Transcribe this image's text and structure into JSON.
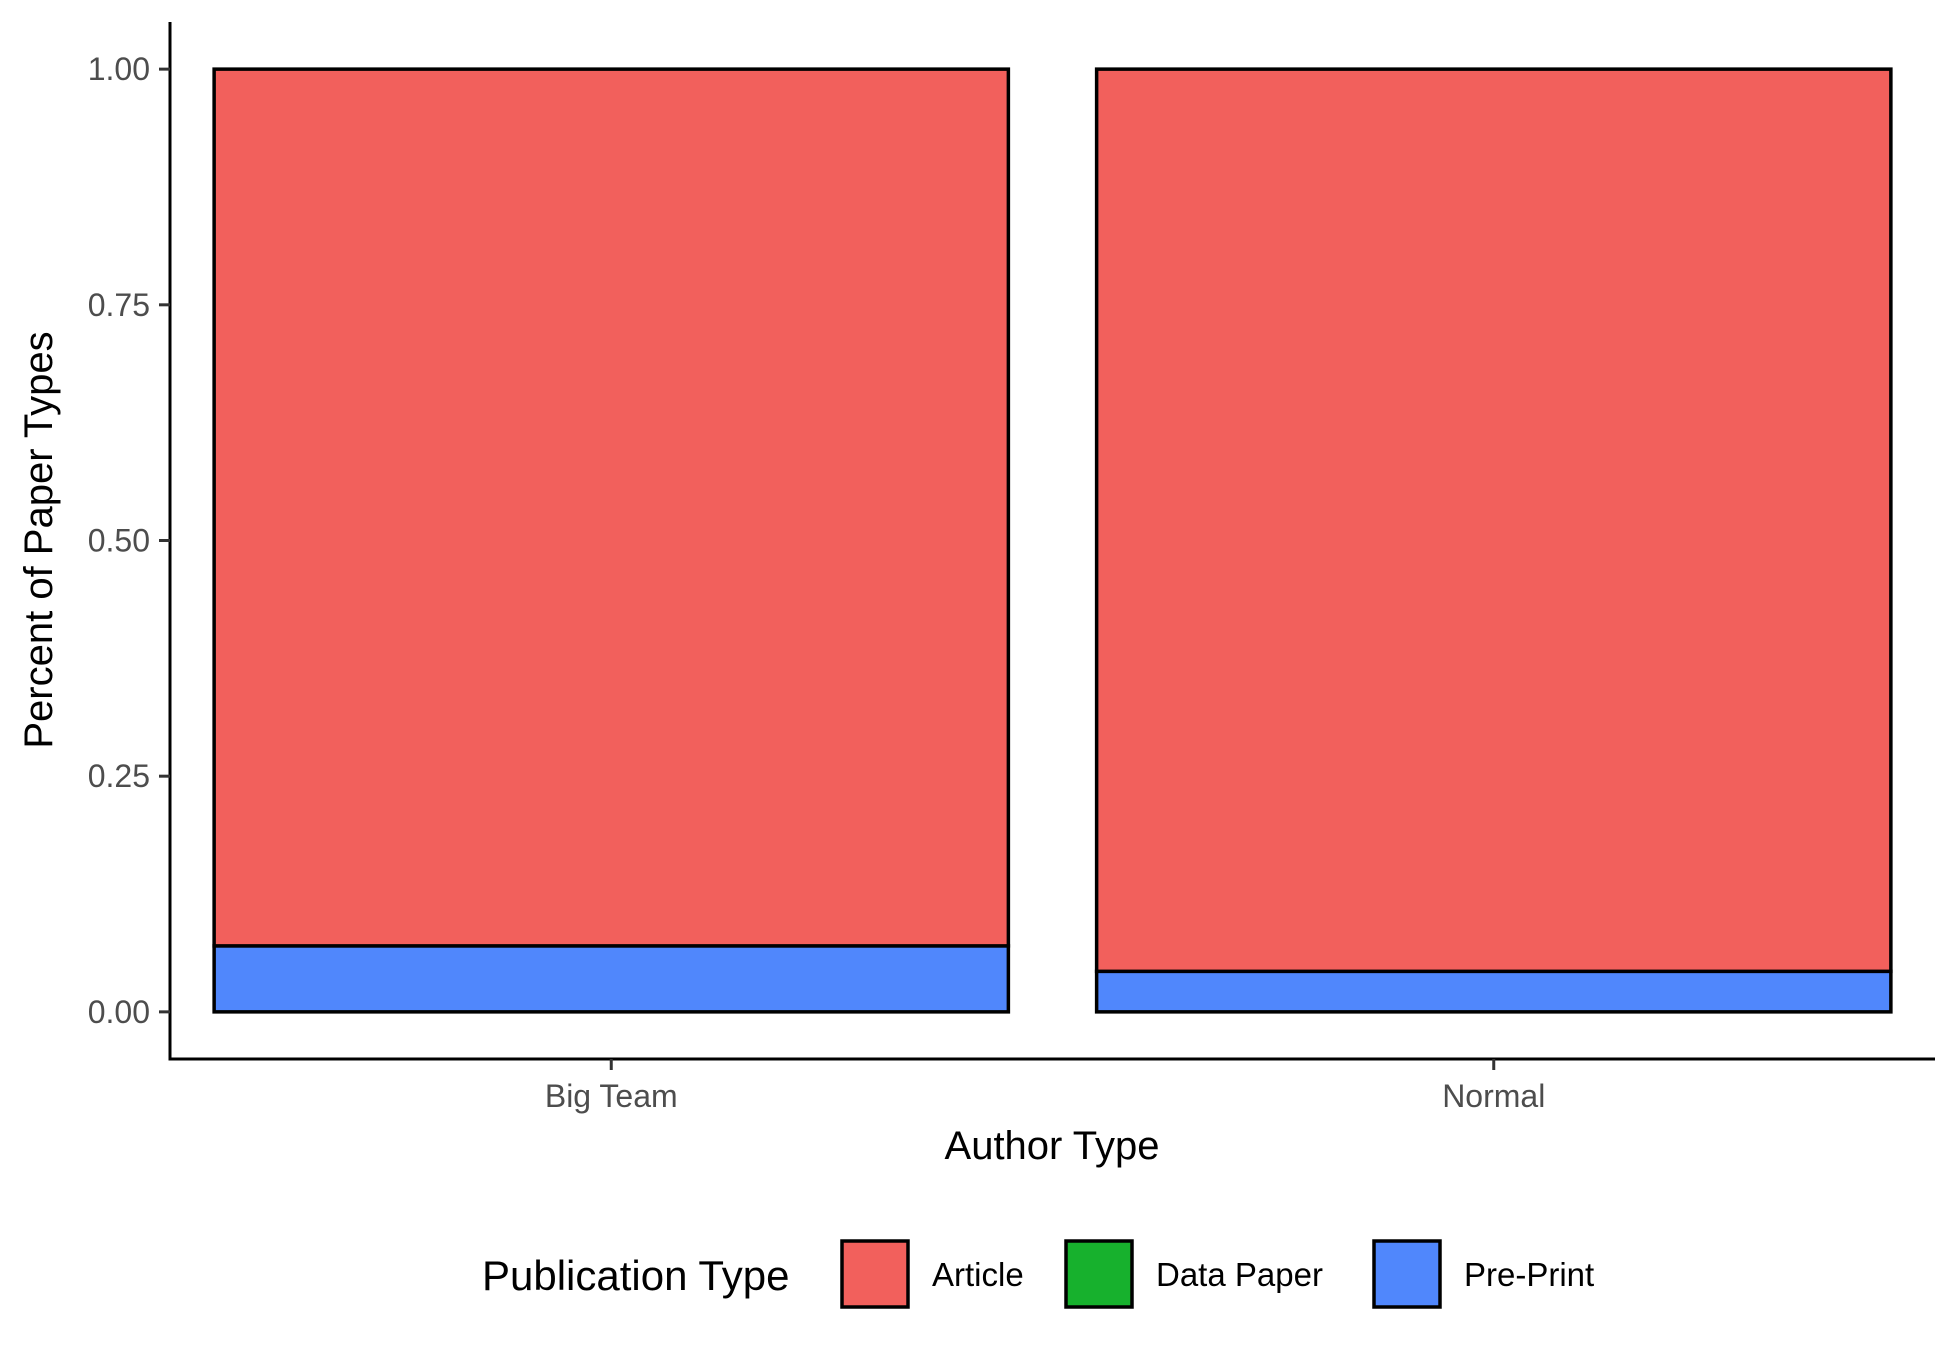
{
  "chart_data": {
    "type": "bar",
    "stacked": true,
    "categories": [
      "Big Team",
      "Normal"
    ],
    "series": [
      {
        "name": "Article",
        "color": "#F2605C",
        "values": [
          0.93,
          0.957
        ]
      },
      {
        "name": "Data Paper",
        "color": "#17B12D",
        "values": [
          0.0,
          0.0
        ]
      },
      {
        "name": "Pre-Print",
        "color": "#5087FC",
        "values": [
          0.07,
          0.043
        ]
      }
    ],
    "stack_order_bottom_to_top": [
      "Pre-Print",
      "Data Paper",
      "Article"
    ],
    "xlabel": "Author Type",
    "ylabel": "Percent of Paper Types",
    "ylim": [
      -0.05,
      1.05
    ],
    "yticks": [
      0.0,
      0.25,
      0.5,
      0.75,
      1.0
    ],
    "ytick_labels": [
      "0.00",
      "0.25",
      "0.50",
      "0.75",
      "1.00"
    ],
    "legend": {
      "title": "Publication Type",
      "position": "bottom"
    },
    "grid": false
  }
}
